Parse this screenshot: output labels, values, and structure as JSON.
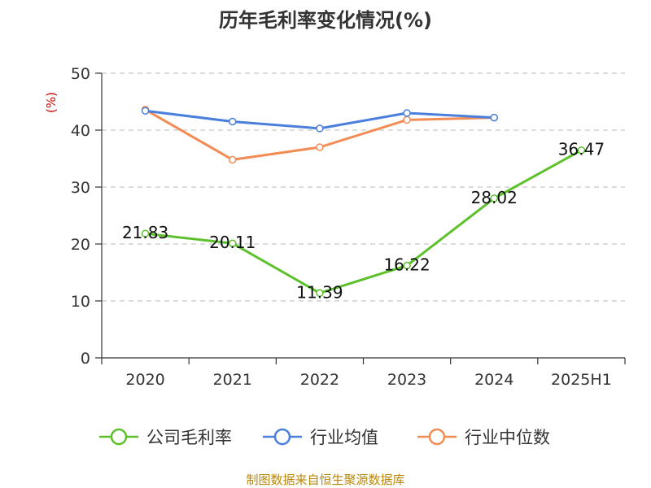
{
  "chart_data": {
    "type": "line",
    "title": "历年毛利率变化情况(%)",
    "unit_label": "(%)",
    "categories": [
      "2020",
      "2021",
      "2022",
      "2023",
      "2024",
      "2025H1"
    ],
    "ylim": [
      0,
      50
    ],
    "yticks": [
      0,
      10,
      20,
      30,
      40,
      50
    ],
    "grid": true,
    "legend_position": "bottom",
    "series": [
      {
        "name": "公司毛利率",
        "color": "#5cc12b",
        "values": [
          21.83,
          20.11,
          11.39,
          16.22,
          28.02,
          36.47
        ],
        "data_labels": [
          "21.83",
          "20.11",
          "11.39",
          "16.22",
          "28.02",
          "36.47"
        ]
      },
      {
        "name": "行业均值",
        "color": "#4a7fdc",
        "values": [
          43.4,
          41.5,
          40.3,
          43.0,
          42.2,
          null
        ]
      },
      {
        "name": "行业中位数",
        "color": "#f28b54",
        "values": [
          43.6,
          34.8,
          37.0,
          41.8,
          42.2,
          null
        ]
      }
    ]
  },
  "footer": "制图数据来自恒生聚源数据库"
}
